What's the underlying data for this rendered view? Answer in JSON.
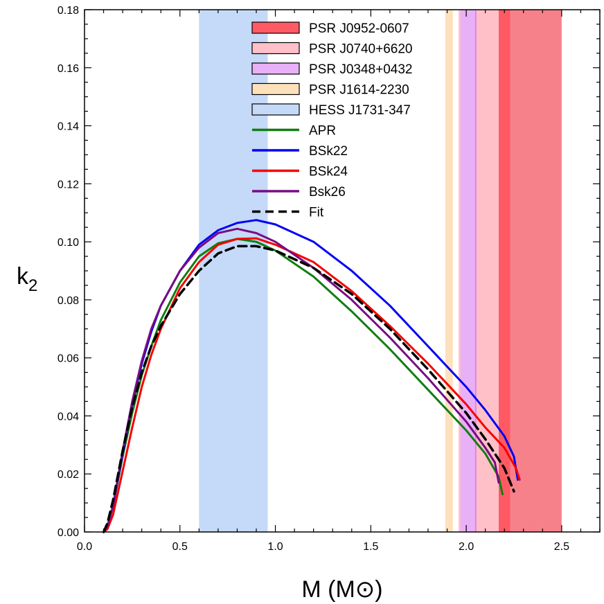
{
  "chart_data": {
    "type": "line",
    "xlabel": "M (M⊙)",
    "ylabel_main": "k",
    "ylabel_sub": "2",
    "xlim": [
      0.0,
      2.7
    ],
    "ylim": [
      0.0,
      0.18
    ],
    "x_ticks": [
      "0.0",
      "0.5",
      "1.0",
      "1.5",
      "2.0",
      "2.5"
    ],
    "x_tick_values": [
      0.0,
      0.5,
      1.0,
      1.5,
      2.0,
      2.5
    ],
    "y_ticks": [
      "0.00",
      "0.02",
      "0.04",
      "0.06",
      "0.08",
      "0.10",
      "0.12",
      "0.14",
      "0.16",
      "0.18"
    ],
    "y_tick_values": [
      0.0,
      0.02,
      0.04,
      0.06,
      0.08,
      0.1,
      0.12,
      0.14,
      0.16,
      0.18
    ],
    "grid": false,
    "legend_position": "top-center",
    "bands": [
      {
        "name": "PSR J0952-0607",
        "x_range": [
          2.17,
          2.5
        ],
        "core_range": [
          2.17,
          2.23
        ],
        "color": "#f7818b",
        "core_color": "#ff5a64"
      },
      {
        "name": "PSR J0740+6620",
        "x_range": [
          1.96,
          2.17
        ],
        "color": "#ffc0c8"
      },
      {
        "name": "PSR J0348+0432",
        "x_range": [
          1.97,
          2.05
        ],
        "color": "#e8b0f6",
        "edge_color": "#e96ee8"
      },
      {
        "name": "PSR J1614-2230",
        "x_range": [
          1.89,
          1.93
        ],
        "color": "#fde1bd"
      },
      {
        "name": "HESS J1731-347",
        "x_range": [
          0.6,
          0.96
        ],
        "color": "#c5d9f8"
      }
    ],
    "series": [
      {
        "name": "APR",
        "color": "#127d12",
        "dash": false,
        "x": [
          0.1,
          0.12,
          0.15,
          0.2,
          0.25,
          0.3,
          0.35,
          0.4,
          0.5,
          0.6,
          0.7,
          0.8,
          0.9,
          1.0,
          1.2,
          1.4,
          1.6,
          1.8,
          2.0,
          2.1,
          2.17,
          2.18,
          2.19
        ],
        "y": [
          0.0,
          0.002,
          0.009,
          0.026,
          0.041,
          0.054,
          0.064,
          0.073,
          0.086,
          0.095,
          0.0995,
          0.101,
          0.1,
          0.097,
          0.088,
          0.076,
          0.063,
          0.049,
          0.035,
          0.027,
          0.019,
          0.016,
          0.013
        ]
      },
      {
        "name": "BSk22",
        "color": "#0000f5",
        "dash": false,
        "x": [
          0.1,
          0.12,
          0.15,
          0.2,
          0.25,
          0.3,
          0.35,
          0.4,
          0.5,
          0.6,
          0.7,
          0.8,
          0.9,
          1.0,
          1.2,
          1.4,
          1.6,
          1.8,
          2.0,
          2.1,
          2.2,
          2.25,
          2.27
        ],
        "y": [
          0.0,
          0.002,
          0.009,
          0.027,
          0.044,
          0.058,
          0.069,
          0.078,
          0.09,
          0.099,
          0.104,
          0.1065,
          0.1075,
          0.106,
          0.1,
          0.09,
          0.078,
          0.064,
          0.05,
          0.042,
          0.033,
          0.026,
          0.018
        ]
      },
      {
        "name": "BSk24",
        "color": "#f50000",
        "dash": false,
        "x": [
          0.1,
          0.12,
          0.15,
          0.2,
          0.25,
          0.3,
          0.35,
          0.4,
          0.5,
          0.6,
          0.7,
          0.8,
          0.9,
          1.0,
          1.2,
          1.4,
          1.6,
          1.8,
          2.0,
          2.1,
          2.2,
          2.26,
          2.28
        ],
        "y": [
          0.0,
          0.001,
          0.006,
          0.021,
          0.036,
          0.05,
          0.061,
          0.07,
          0.084,
          0.093,
          0.099,
          0.101,
          0.1012,
          0.099,
          0.093,
          0.083,
          0.071,
          0.058,
          0.044,
          0.036,
          0.029,
          0.022,
          0.018
        ]
      },
      {
        "name": "Bsk26",
        "color": "#780c84",
        "dash": false,
        "x": [
          0.1,
          0.12,
          0.15,
          0.2,
          0.25,
          0.3,
          0.35,
          0.4,
          0.5,
          0.6,
          0.7,
          0.8,
          0.9,
          1.0,
          1.2,
          1.4,
          1.6,
          1.8,
          2.0,
          2.1,
          2.15,
          2.17
        ],
        "y": [
          0.0,
          0.002,
          0.009,
          0.028,
          0.045,
          0.059,
          0.07,
          0.078,
          0.09,
          0.098,
          0.103,
          0.1045,
          0.103,
          0.1,
          0.091,
          0.08,
          0.067,
          0.053,
          0.038,
          0.029,
          0.024,
          0.017
        ]
      },
      {
        "name": "Fit",
        "color": "#000000",
        "dash": true,
        "x": [
          0.1,
          0.12,
          0.15,
          0.2,
          0.25,
          0.3,
          0.35,
          0.4,
          0.5,
          0.6,
          0.7,
          0.8,
          0.9,
          1.0,
          1.2,
          1.4,
          1.6,
          1.8,
          2.0,
          2.1,
          2.2,
          2.25
        ],
        "y": [
          0.0,
          0.003,
          0.011,
          0.028,
          0.043,
          0.055,
          0.064,
          0.071,
          0.082,
          0.09,
          0.096,
          0.0985,
          0.0985,
          0.097,
          0.091,
          0.082,
          0.07,
          0.056,
          0.041,
          0.032,
          0.022,
          0.014
        ]
      }
    ]
  }
}
